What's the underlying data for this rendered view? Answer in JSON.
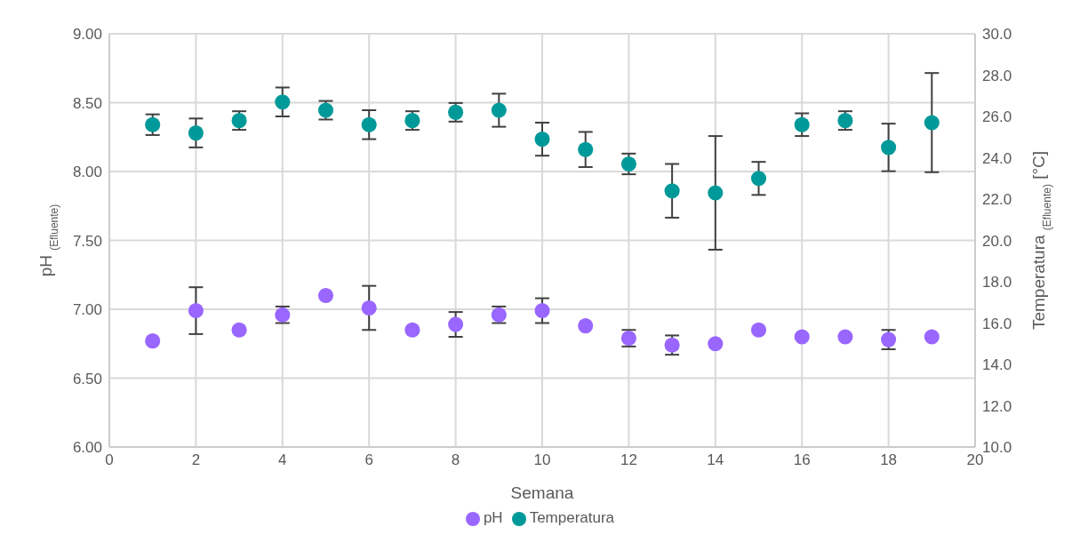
{
  "chart_data": {
    "type": "scatter",
    "xlabel": "Semana",
    "ylabel": "pH $_{(Efluente)}$",
    "y2label": "Temperatura $_{(Efluente)}$ [°C]",
    "x": [
      1,
      2,
      3,
      4,
      5,
      6,
      7,
      8,
      9,
      10,
      11,
      12,
      13,
      14,
      15,
      16,
      17,
      18,
      19
    ],
    "series": [
      {
        "name": "pH",
        "color": "#9966ff",
        "values": [
          6.77,
          6.99,
          6.85,
          6.96,
          7.1,
          7.01,
          6.85,
          6.89,
          6.96,
          6.99,
          6.88,
          6.79,
          6.74,
          6.75,
          6.85,
          6.8,
          6.8,
          6.78,
          6.8
        ],
        "errors": [
          null,
          0.17,
          null,
          0.06,
          null,
          0.16,
          null,
          0.09,
          0.06,
          0.09,
          null,
          0.06,
          0.07,
          null,
          null,
          null,
          null,
          0.07,
          null
        ]
      },
      {
        "name": "Temperatura",
        "color": "#009999",
        "axis": "y2",
        "values": [
          25.6,
          25.2,
          25.8,
          26.7,
          26.3,
          25.6,
          25.8,
          26.2,
          26.3,
          24.9,
          24.4,
          23.7,
          22.4,
          22.3,
          23.0,
          25.6,
          25.8,
          24.5,
          25.7
        ],
        "errors": [
          0.5,
          0.7,
          0.45,
          0.7,
          0.45,
          0.7,
          0.45,
          0.45,
          0.8,
          0.8,
          0.85,
          0.5,
          1.3,
          2.75,
          0.8,
          0.55,
          0.45,
          1.15,
          2.4
        ]
      }
    ],
    "xlim": [
      0,
      20
    ],
    "xticks": [
      0,
      2,
      4,
      6,
      8,
      10,
      12,
      14,
      16,
      18,
      20
    ],
    "ylim": [
      6,
      9
    ],
    "yticks": [
      {
        "value": 6,
        "label": "6.00"
      },
      {
        "value": 6.5,
        "label": "6.50"
      },
      {
        "value": 7,
        "label": "7.00"
      },
      {
        "value": 7.5,
        "label": "7.50"
      },
      {
        "value": 8,
        "label": "8.00"
      },
      {
        "value": 8.5,
        "label": "8.50"
      },
      {
        "value": 9,
        "label": "9.00"
      }
    ],
    "y2lim": [
      10,
      30
    ],
    "y2ticks": [
      {
        "value": 10,
        "label": "10.0"
      },
      {
        "value": 12,
        "label": "12.0"
      },
      {
        "value": 14,
        "label": "14.0"
      },
      {
        "value": 16,
        "label": "16.0"
      },
      {
        "value": 18,
        "label": "18.0"
      },
      {
        "value": 20,
        "label": "20.0"
      },
      {
        "value": 22,
        "label": "22.0"
      },
      {
        "value": 24,
        "label": "24.0"
      },
      {
        "value": 26,
        "label": "26.0"
      },
      {
        "value": 28,
        "label": "28.0"
      },
      {
        "value": 30,
        "label": "30.0"
      }
    ],
    "grid": true,
    "legend": "bottom",
    "marker": "circle"
  }
}
